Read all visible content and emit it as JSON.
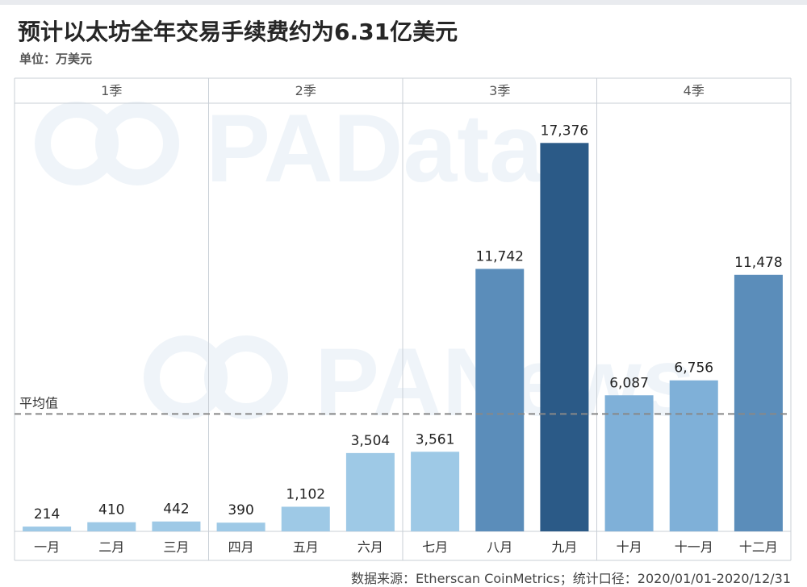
{
  "header": {
    "title": "预计以太坊全年交易手续费约为6.31亿美元",
    "unit": "单位：万美元",
    "source": "数据来源：Etherscan CoinMetrics；统计口径：2020/01/01-2020/12/31"
  },
  "watermarks": [
    {
      "text": "PAData",
      "icon": "panews-logo-icon"
    },
    {
      "text": "PANews",
      "icon": "panews-logo-icon"
    }
  ],
  "colors": {
    "light": "#9ec9e6",
    "mid": "#7fb0d8",
    "dark": "#5b8dba",
    "darkest": "#2b5a87",
    "avg_line": "#888888",
    "frame": "#c9cfd6"
  },
  "chart_data": {
    "type": "bar",
    "title": "预计以太坊全年交易手续费约为6.31亿美元",
    "ylabel": "单位：万美元",
    "groups": [
      {
        "label": "1季",
        "categories": [
          "一月",
          "二月",
          "三月"
        ]
      },
      {
        "label": "2季",
        "categories": [
          "四月",
          "五月",
          "六月"
        ]
      },
      {
        "label": "3季",
        "categories": [
          "七月",
          "八月",
          "九月"
        ]
      },
      {
        "label": "4季",
        "categories": [
          "十月",
          "十一月",
          "十二月"
        ]
      }
    ],
    "categories": [
      "一月",
      "二月",
      "三月",
      "四月",
      "五月",
      "六月",
      "七月",
      "八月",
      "九月",
      "十月",
      "十一月",
      "十二月"
    ],
    "values": [
      214,
      410,
      442,
      390,
      1102,
      3504,
      3561,
      11742,
      17376,
      6087,
      6756,
      11478
    ],
    "value_labels": [
      "214",
      "410",
      "442",
      "390",
      "1,102",
      "3,504",
      "3,561",
      "11,742",
      "17,376",
      "6,087",
      "6,756",
      "11,478"
    ],
    "bar_colors": [
      "#9ec9e6",
      "#9ec9e6",
      "#9ec9e6",
      "#9ec9e6",
      "#9ec9e6",
      "#9ec9e6",
      "#9ec9e6",
      "#5b8dba",
      "#2b5a87",
      "#7fb0d8",
      "#7fb0d8",
      "#5b8dba"
    ],
    "average": {
      "label": "平均值",
      "value": 5255
    },
    "ylim": [
      0,
      18000
    ],
    "grid": false,
    "legend": "none"
  }
}
